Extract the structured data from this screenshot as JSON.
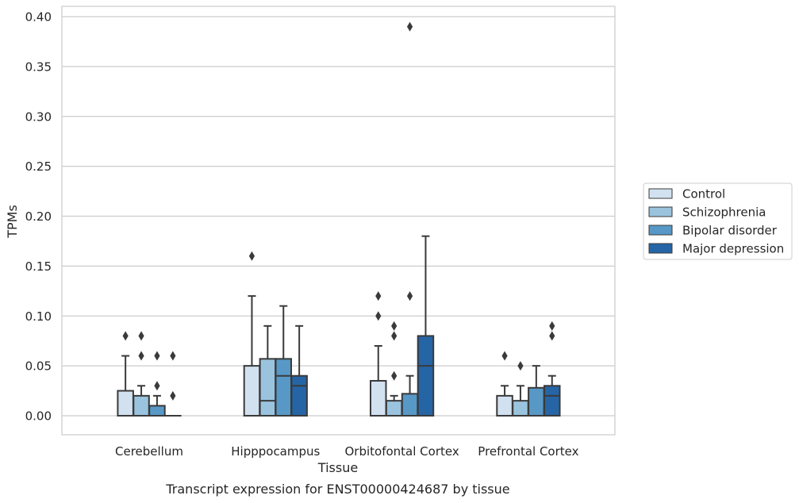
{
  "caption": "Transcript expression for ENST00000424687 by tissue",
  "chart_data": {
    "type": "box",
    "xlabel": "Tissue",
    "ylabel": "TPMs",
    "ylim": [
      -0.018,
      0.41
    ],
    "yticks": [
      0.0,
      0.05,
      0.1,
      0.15,
      0.2,
      0.25,
      0.3,
      0.35,
      0.4
    ],
    "ytick_labels": [
      "0.00",
      "0.05",
      "0.10",
      "0.15",
      "0.20",
      "0.25",
      "0.30",
      "0.35",
      "0.40"
    ],
    "grid": true,
    "legend_position": "right",
    "categories": [
      "Cerebellum",
      "Hipppocampus",
      "Orbitofontal Cortex",
      "Prefrontal Cortex"
    ],
    "series": [
      {
        "name": "Control",
        "color": "#d2e1f0",
        "boxes": [
          {
            "whislo": 0,
            "q1": 0,
            "med": 0,
            "q3": 0.025,
            "whishi": 0.06,
            "fliers": [
              0.08
            ]
          },
          {
            "whislo": 0,
            "q1": 0,
            "med": 0,
            "q3": 0.05,
            "whishi": 0.12,
            "fliers": [
              0.16
            ]
          },
          {
            "whislo": 0,
            "q1": 0,
            "med": 0,
            "q3": 0.035,
            "whishi": 0.07,
            "fliers": [
              0.1,
              0.12
            ]
          },
          {
            "whislo": 0,
            "q1": 0,
            "med": 0,
            "q3": 0.02,
            "whishi": 0.03,
            "fliers": [
              0.06
            ]
          }
        ]
      },
      {
        "name": "Schizophrenia",
        "color": "#9ac3de",
        "boxes": [
          {
            "whislo": 0,
            "q1": 0,
            "med": 0,
            "q3": 0.02,
            "whishi": 0.03,
            "fliers": [
              0.06,
              0.08
            ]
          },
          {
            "whislo": 0,
            "q1": 0,
            "med": 0.015,
            "q3": 0.057,
            "whishi": 0.09,
            "fliers": []
          },
          {
            "whislo": 0,
            "q1": 0,
            "med": 0,
            "q3": 0.015,
            "whishi": 0.02,
            "fliers": [
              0.04,
              0.08,
              0.09
            ]
          },
          {
            "whislo": 0,
            "q1": 0,
            "med": 0,
            "q3": 0.015,
            "whishi": 0.03,
            "fliers": [
              0.05
            ]
          }
        ]
      },
      {
        "name": "Bipolar disorder",
        "color": "#5798c6",
        "boxes": [
          {
            "whislo": 0,
            "q1": 0,
            "med": 0,
            "q3": 0.01,
            "whishi": 0.02,
            "fliers": [
              0.03,
              0.06
            ]
          },
          {
            "whislo": 0,
            "q1": 0,
            "med": 0.04,
            "q3": 0.057,
            "whishi": 0.11,
            "fliers": []
          },
          {
            "whislo": 0,
            "q1": 0,
            "med": 0,
            "q3": 0.022,
            "whishi": 0.04,
            "fliers": [
              0.12,
              0.39
            ]
          },
          {
            "whislo": 0,
            "q1": 0,
            "med": 0,
            "q3": 0.028,
            "whishi": 0.05,
            "fliers": []
          }
        ]
      },
      {
        "name": "Major depression",
        "color": "#2565a6",
        "boxes": [
          {
            "whislo": 0,
            "q1": 0,
            "med": 0,
            "q3": 0,
            "whishi": 0,
            "fliers": [
              0.02,
              0.06
            ]
          },
          {
            "whislo": 0,
            "q1": 0,
            "med": 0.03,
            "q3": 0.04,
            "whishi": 0.09,
            "fliers": []
          },
          {
            "whislo": 0,
            "q1": 0,
            "med": 0.05,
            "q3": 0.08,
            "whishi": 0.18,
            "fliers": []
          },
          {
            "whislo": 0,
            "q1": 0,
            "med": 0.02,
            "q3": 0.03,
            "whishi": 0.04,
            "fliers": [
              0.08,
              0.09
            ]
          }
        ]
      }
    ]
  }
}
